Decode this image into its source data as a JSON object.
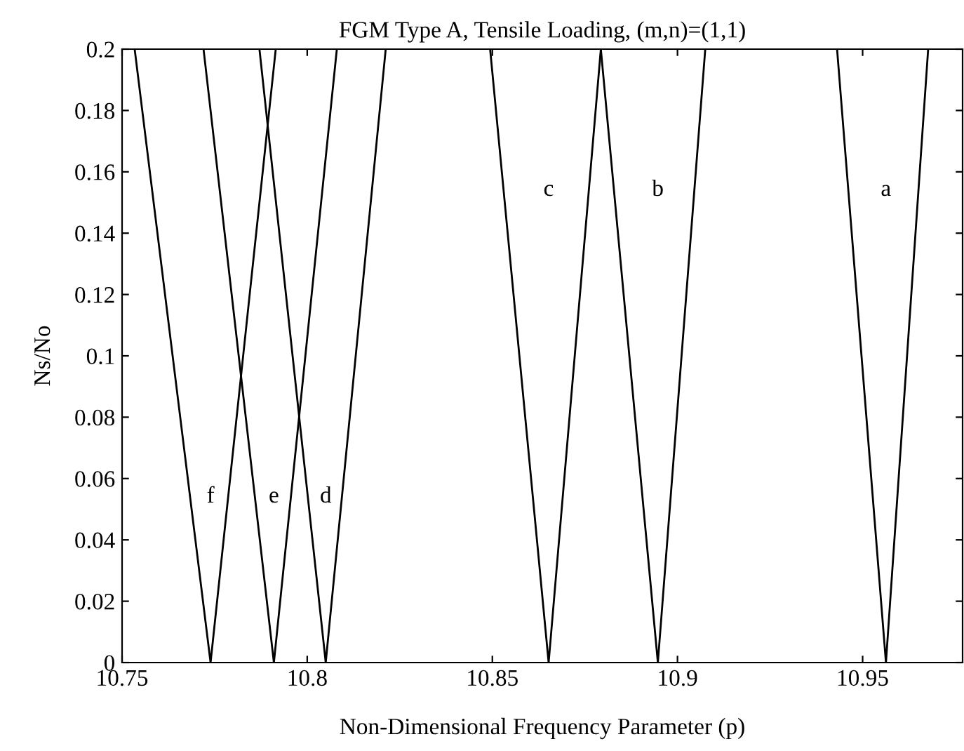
{
  "chart_data": {
    "type": "line",
    "title": "FGM Type A, Tensile Loading, (m,n)=(1,1)",
    "xlabel": "Non-Dimensional Frequency Parameter (p)",
    "ylabel": "Ns/No",
    "xlim": [
      10.75,
      10.977
    ],
    "ylim": [
      0,
      0.2
    ],
    "xticks": [
      10.75,
      10.8,
      10.85,
      10.9,
      10.95
    ],
    "yticks": [
      0,
      0.02,
      0.04,
      0.06,
      0.08,
      0.1,
      0.12,
      0.14,
      0.16,
      0.18,
      0.2
    ],
    "grid": false,
    "legend": false,
    "marker": "none",
    "line_style": "solid",
    "series": [
      {
        "name": "f",
        "color": "#000000",
        "x": [
          10.7534,
          10.7739,
          10.7915
        ],
        "values": [
          0.2,
          0,
          0.2
        ]
      },
      {
        "name": "e",
        "color": "#000000",
        "x": [
          10.772,
          10.791,
          10.808
        ],
        "values": [
          0.2,
          0,
          0.2
        ]
      },
      {
        "name": "d",
        "color": "#000000",
        "x": [
          10.7871,
          10.805,
          10.8212
        ],
        "values": [
          0.2,
          0,
          0.2
        ]
      },
      {
        "name": "c",
        "color": "#000000",
        "x": [
          10.8494,
          10.8652,
          10.8793
        ],
        "values": [
          0.2,
          0,
          0.2
        ]
      },
      {
        "name": "b",
        "color": "#000000",
        "x": [
          10.8793,
          10.8947,
          10.9075
        ],
        "values": [
          0.2,
          0,
          0.2
        ]
      },
      {
        "name": "a",
        "color": "#000000",
        "x": [
          10.9431,
          10.9563,
          10.9677
        ],
        "values": [
          0.2,
          0,
          0.2
        ]
      }
    ]
  }
}
